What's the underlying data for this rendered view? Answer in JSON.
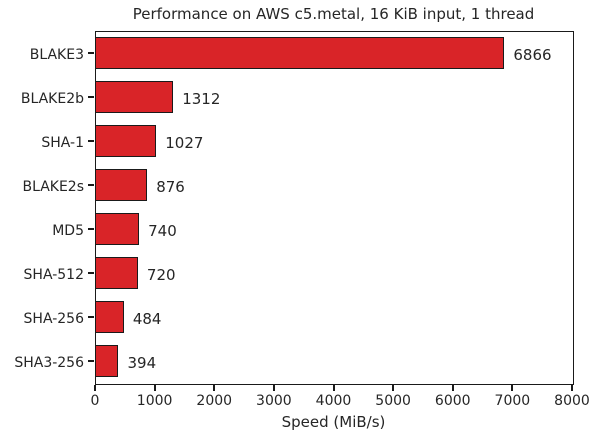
{
  "title": "Performance on AWS c5.metal, 16 KiB input, 1 thread",
  "chart_data": {
    "type": "bar",
    "orientation": "horizontal",
    "title": "Performance on AWS c5.metal, 16 KiB input, 1 thread",
    "categories": [
      "BLAKE3",
      "BLAKE2b",
      "SHA-1",
      "BLAKE2s",
      "MD5",
      "SHA-512",
      "SHA-256",
      "SHA3-256"
    ],
    "values": [
      6866,
      1312,
      1027,
      876,
      740,
      720,
      484,
      394
    ],
    "value_labels": [
      "6866",
      "1312",
      "1027",
      "876",
      "740",
      "720",
      "484",
      "394"
    ],
    "xlabel": "Speed (MiB/s)",
    "ylabel": "",
    "xlim": [
      0,
      8000
    ],
    "xticks": [
      0,
      1000,
      2000,
      3000,
      4000,
      5000,
      6000,
      7000,
      8000
    ],
    "xtick_labels": [
      "0",
      "1000",
      "2000",
      "3000",
      "4000",
      "5000",
      "6000",
      "7000",
      "8000"
    ],
    "grid": false,
    "legend": "none",
    "bar_color": "#d92428",
    "bar_edge_color": "#1a1a1a",
    "text_color": "#262626"
  }
}
